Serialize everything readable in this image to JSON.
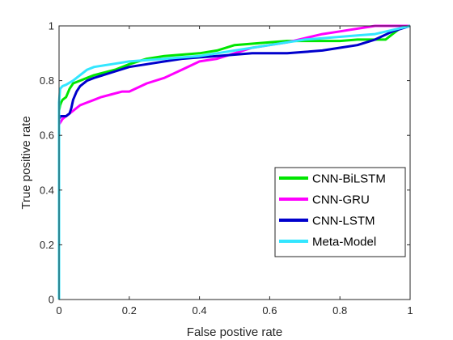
{
  "chart_data": {
    "type": "line",
    "title": "",
    "xlabel": "False postive rate",
    "ylabel": "True positive rate",
    "xlim": [
      0,
      1
    ],
    "ylim": [
      0,
      1
    ],
    "xticks": [
      "0",
      "0.2",
      "0.4",
      "0.6",
      "0.8",
      "1"
    ],
    "yticks": [
      "0",
      "0.2",
      "0.4",
      "0.6",
      "0.8",
      "1"
    ],
    "grid": false,
    "legend_position": "bottom-right",
    "series": [
      {
        "name": "CNN-BiLSTM",
        "color": "#00e600",
        "x": [
          0,
          0,
          0.003,
          0.006,
          0.01,
          0.02,
          0.03,
          0.04,
          0.06,
          0.08,
          0.1,
          0.13,
          0.16,
          0.2,
          0.25,
          0.3,
          0.35,
          0.4,
          0.45,
          0.5,
          0.55,
          0.6,
          0.65,
          0.7,
          0.75,
          0.8,
          0.85,
          0.9,
          0.93,
          0.95,
          0.97,
          1.0
        ],
        "y": [
          0,
          0.69,
          0.71,
          0.72,
          0.73,
          0.74,
          0.77,
          0.79,
          0.8,
          0.81,
          0.82,
          0.83,
          0.84,
          0.86,
          0.88,
          0.89,
          0.895,
          0.9,
          0.91,
          0.93,
          0.935,
          0.94,
          0.945,
          0.945,
          0.945,
          0.945,
          0.95,
          0.95,
          0.95,
          0.97,
          0.99,
          1.0
        ]
      },
      {
        "name": "CNN-GRU",
        "color": "#ff00ff",
        "x": [
          0,
          0,
          0.005,
          0.01,
          0.02,
          0.04,
          0.06,
          0.08,
          0.1,
          0.12,
          0.15,
          0.18,
          0.2,
          0.25,
          0.3,
          0.35,
          0.4,
          0.45,
          0.5,
          0.55,
          0.6,
          0.65,
          0.7,
          0.75,
          0.8,
          0.85,
          0.9,
          0.95,
          1.0
        ],
        "y": [
          0,
          0.64,
          0.65,
          0.66,
          0.67,
          0.69,
          0.71,
          0.72,
          0.73,
          0.74,
          0.75,
          0.76,
          0.76,
          0.79,
          0.81,
          0.84,
          0.87,
          0.88,
          0.9,
          0.92,
          0.93,
          0.94,
          0.955,
          0.97,
          0.98,
          0.99,
          1.0,
          1.0,
          1.0
        ]
      },
      {
        "name": "CNN-LSTM",
        "color": "#0000cc",
        "x": [
          0,
          0,
          0.005,
          0.02,
          0.03,
          0.035,
          0.04,
          0.05,
          0.06,
          0.08,
          0.1,
          0.15,
          0.2,
          0.25,
          0.3,
          0.35,
          0.4,
          0.45,
          0.5,
          0.55,
          0.6,
          0.65,
          0.7,
          0.75,
          0.8,
          0.85,
          0.9,
          0.95,
          1.0
        ],
        "y": [
          0,
          0.66,
          0.67,
          0.67,
          0.68,
          0.7,
          0.73,
          0.76,
          0.78,
          0.8,
          0.81,
          0.83,
          0.85,
          0.86,
          0.87,
          0.88,
          0.885,
          0.89,
          0.895,
          0.9,
          0.9,
          0.9,
          0.905,
          0.91,
          0.92,
          0.93,
          0.95,
          0.98,
          1.0
        ]
      },
      {
        "name": "Meta-Model",
        "color": "#33e6ff",
        "x": [
          0,
          0,
          0.003,
          0.01,
          0.02,
          0.04,
          0.06,
          0.08,
          0.1,
          0.15,
          0.2,
          0.25,
          0.3,
          0.35,
          0.4,
          0.45,
          0.5,
          0.55,
          0.6,
          0.65,
          0.7,
          0.75,
          0.8,
          0.85,
          0.9,
          0.95,
          1.0
        ],
        "y": [
          0,
          0.72,
          0.77,
          0.78,
          0.785,
          0.8,
          0.82,
          0.84,
          0.85,
          0.86,
          0.87,
          0.875,
          0.88,
          0.885,
          0.89,
          0.9,
          0.91,
          0.92,
          0.93,
          0.94,
          0.95,
          0.955,
          0.96,
          0.965,
          0.97,
          0.985,
          1.0
        ]
      }
    ]
  }
}
